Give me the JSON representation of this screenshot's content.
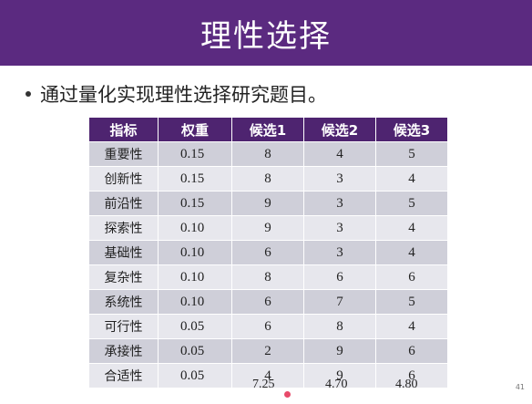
{
  "slide": {
    "title": "理性选择",
    "bullet": "通过量化实现理性选择研究题目。",
    "table": {
      "headers": [
        "指标",
        "权重",
        "候选1",
        "候选2",
        "候选3"
      ],
      "rows": [
        {
          "name": "重要性",
          "weight": "0.15",
          "c1": "8",
          "c2": "4",
          "c3": "5"
        },
        {
          "name": "创新性",
          "weight": "0.15",
          "c1": "8",
          "c2": "3",
          "c3": "4"
        },
        {
          "name": "前沿性",
          "weight": "0.15",
          "c1": "9",
          "c2": "3",
          "c3": "5"
        },
        {
          "name": "探索性",
          "weight": "0.10",
          "c1": "9",
          "c2": "3",
          "c3": "4"
        },
        {
          "name": "基础性",
          "weight": "0.10",
          "c1": "6",
          "c2": "3",
          "c3": "4"
        },
        {
          "name": "复杂性",
          "weight": "0.10",
          "c1": "8",
          "c2": "6",
          "c3": "6"
        },
        {
          "name": "系统性",
          "weight": "0.10",
          "c1": "6",
          "c2": "7",
          "c3": "5"
        },
        {
          "name": "可行性",
          "weight": "0.05",
          "c1": "6",
          "c2": "8",
          "c3": "4"
        },
        {
          "name": "承接性",
          "weight": "0.05",
          "c1": "2",
          "c2": "9",
          "c3": "6"
        },
        {
          "name": "合适性",
          "weight": "0.05",
          "c1": "4",
          "c2": "9",
          "c3": "6"
        }
      ]
    },
    "totals": {
      "c1": "7.25",
      "c2": "4.70",
      "c3": "4.80"
    },
    "page_number": "41"
  },
  "colors": {
    "title_bar": "#5b2a80",
    "header_row": "#4e2470",
    "row_odd": "#cfcfd9",
    "row_even": "#e7e7ed"
  }
}
